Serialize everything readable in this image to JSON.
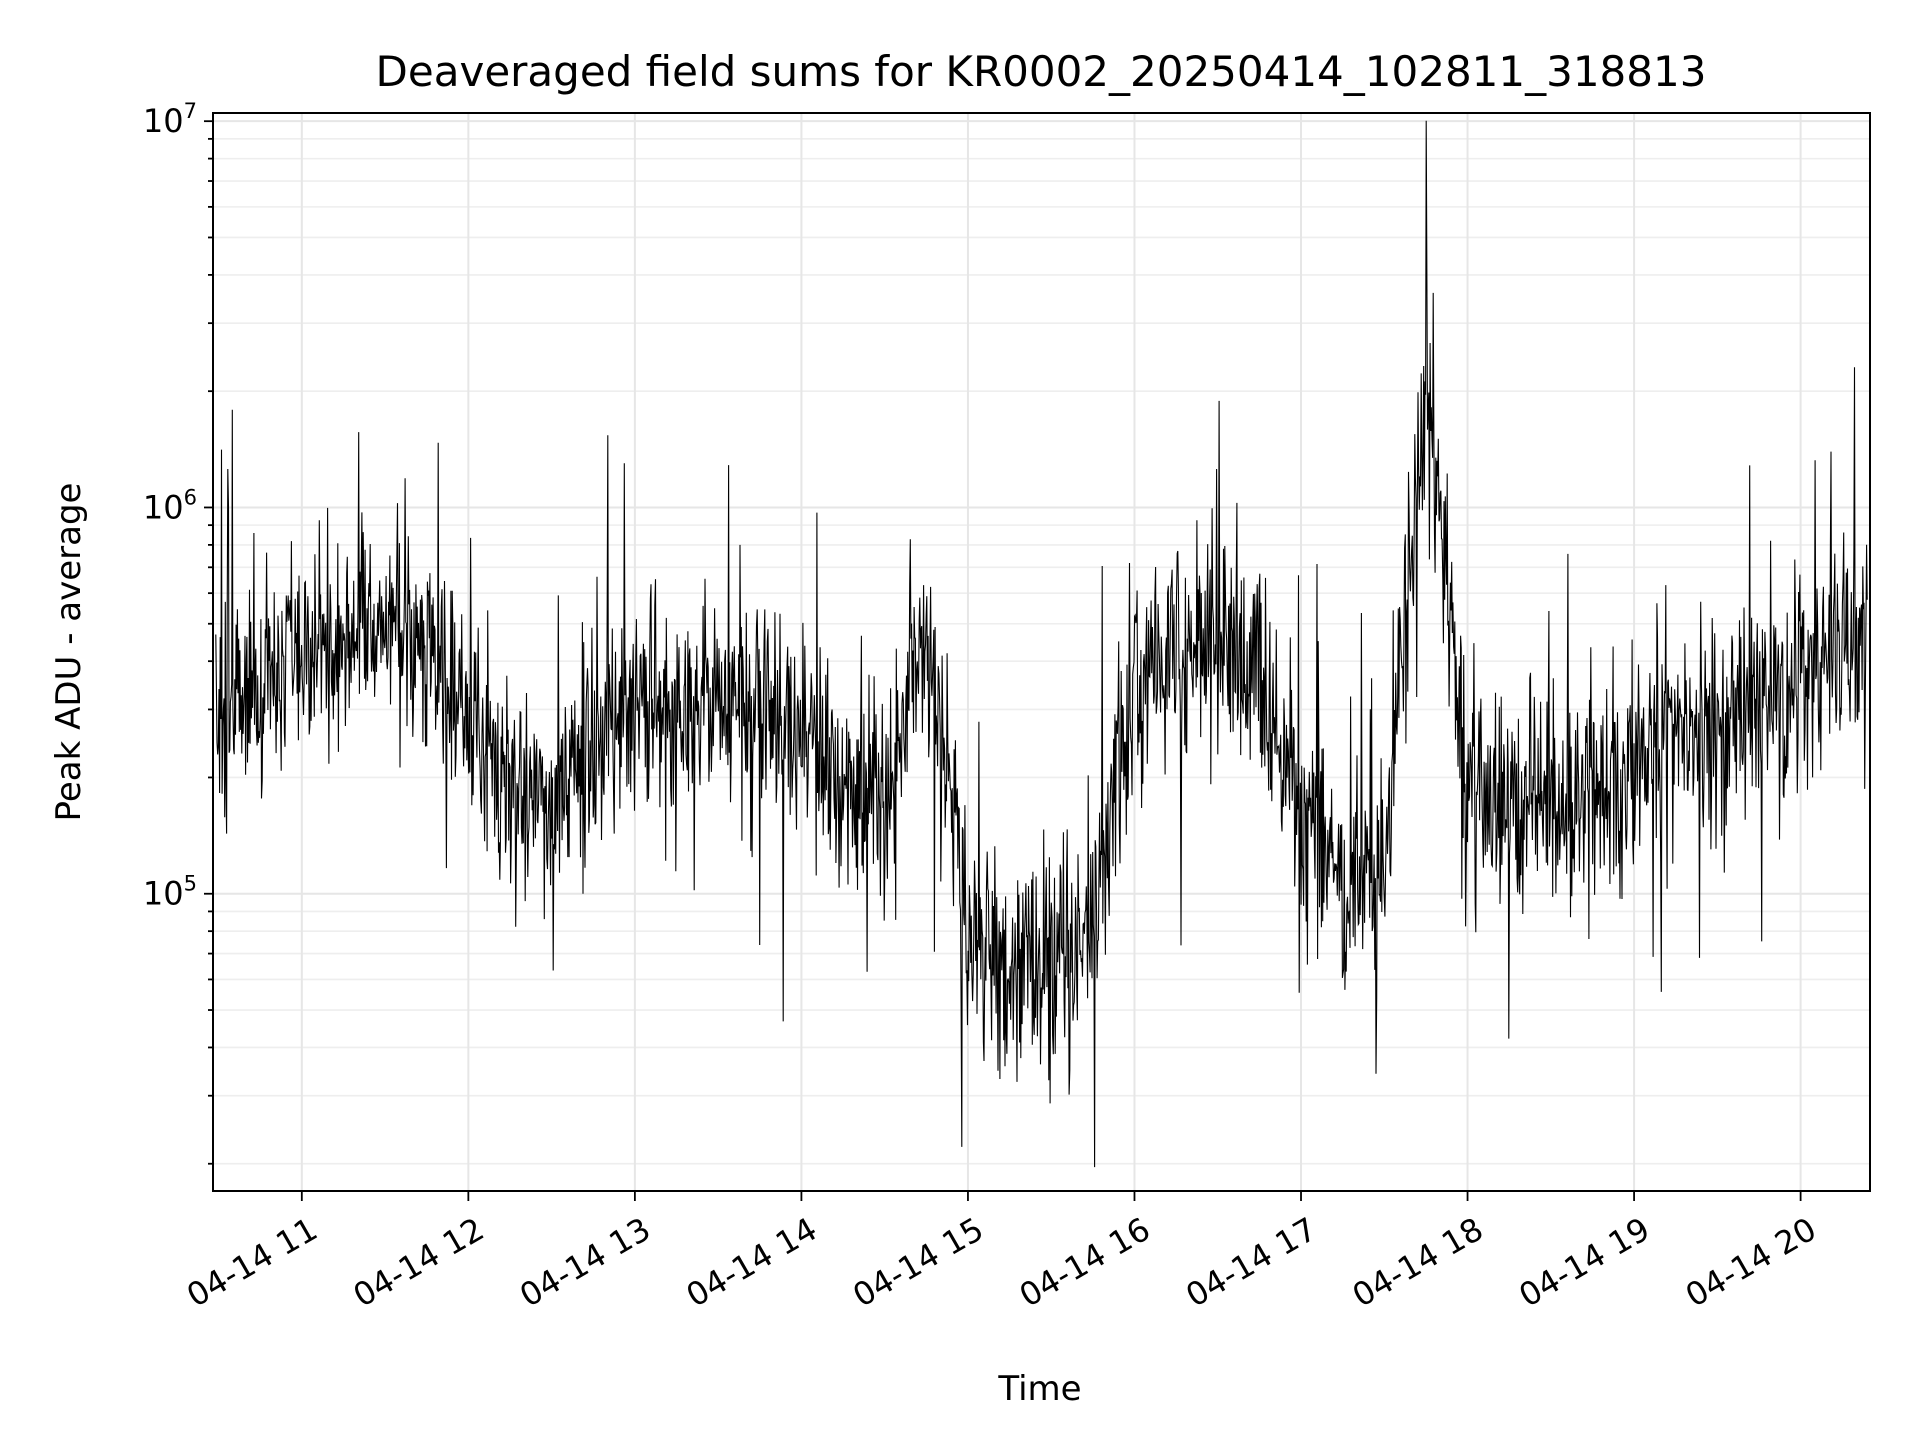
{
  "chart_data": {
    "type": "line",
    "title": "Deaveraged field sums for KR0002_20250414_102811_318813",
    "xlabel": "Time",
    "ylabel": "Peak ADU - average",
    "yscale": "log",
    "ylim": [
      17000,
      10500000
    ],
    "xlim": [
      "2025-04-14 10:28",
      "2025-04-14 20:25"
    ],
    "grid": true,
    "legend": "none",
    "line_color": "#000000",
    "x_ticks": [
      "04-14 11",
      "04-14 12",
      "04-14 13",
      "04-14 14",
      "04-14 15",
      "04-14 16",
      "04-14 17",
      "04-14 18",
      "04-14 19",
      "04-14 20"
    ],
    "y_ticks": [
      {
        "base": "10",
        "exp": "5"
      },
      {
        "base": "10",
        "exp": "6"
      },
      {
        "base": "10",
        "exp": "7"
      }
    ],
    "series": [
      {
        "x": [
          "2025-04-14 10:30",
          "2025-04-14 10:45",
          "2025-04-14 11:00",
          "2025-04-14 11:15",
          "2025-04-14 11:30",
          "2025-04-14 11:45",
          "2025-04-14 12:00",
          "2025-04-14 12:15",
          "2025-04-14 12:30",
          "2025-04-14 12:45",
          "2025-04-14 13:00",
          "2025-04-14 13:15",
          "2025-04-14 13:30",
          "2025-04-14 13:45",
          "2025-04-14 14:00",
          "2025-04-14 14:15",
          "2025-04-14 14:30",
          "2025-04-14 14:45",
          "2025-04-14 15:00",
          "2025-04-14 15:15",
          "2025-04-14 15:30",
          "2025-04-14 15:45",
          "2025-04-14 16:00",
          "2025-04-14 16:15",
          "2025-04-14 16:30",
          "2025-04-14 16:45",
          "2025-04-14 17:00",
          "2025-04-14 17:15",
          "2025-04-14 17:30",
          "2025-04-14 17:45",
          "2025-04-14 18:00",
          "2025-04-14 18:15",
          "2025-04-14 18:30",
          "2025-04-14 18:45",
          "2025-04-14 19:00",
          "2025-04-14 19:15",
          "2025-04-14 19:30",
          "2025-04-14 19:45",
          "2025-04-14 20:00",
          "2025-04-14 20:15"
        ],
        "values": [
          300000,
          350000,
          400000,
          500000,
          550000,
          480000,
          320000,
          200000,
          160000,
          250000,
          300000,
          320000,
          350000,
          300000,
          250000,
          200000,
          150000,
          500000,
          80000,
          60000,
          70000,
          80000,
          350000,
          400000,
          450000,
          400000,
          150000,
          110000,
          120000,
          2000000,
          180000,
          170000,
          180000,
          190000,
          200000,
          280000,
          300000,
          300000,
          350000,
          450000
        ]
      }
    ]
  }
}
